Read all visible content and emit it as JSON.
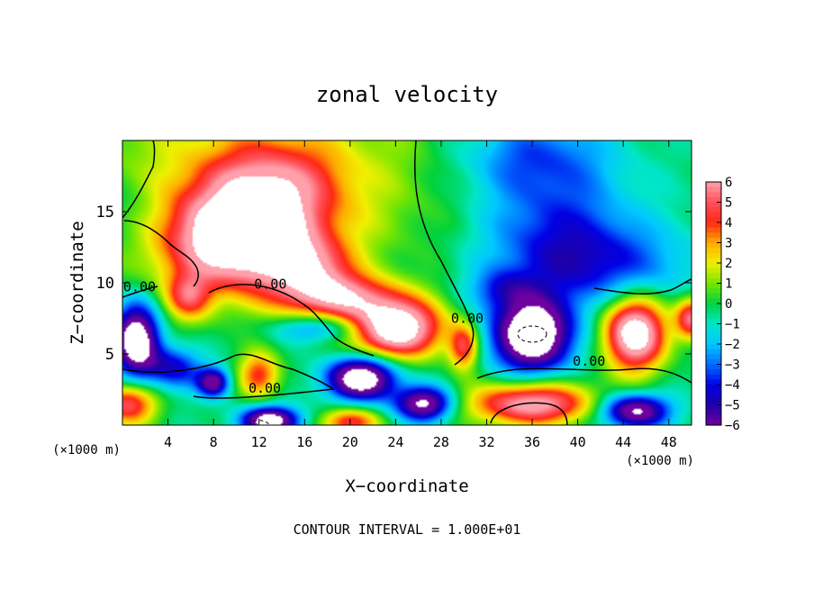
{
  "chart_data": {
    "type": "heatmap",
    "title": "zonal velocity",
    "xlabel": "X−coordinate",
    "ylabel": "Z−coordinate",
    "x_unit": "(×1000 m)",
    "y_unit": "(×1000 m)",
    "xlim": [
      0,
      50
    ],
    "ylim": [
      0,
      20
    ],
    "x_ticks": [
      4,
      8,
      12,
      16,
      20,
      24,
      28,
      32,
      36,
      40,
      44,
      48
    ],
    "y_ticks": [
      5,
      10,
      15
    ],
    "x_tick_labels": [
      "4",
      "8",
      "12",
      "16",
      "20",
      "24",
      "28",
      "32",
      "36",
      "40",
      "44",
      "48"
    ],
    "y_tick_labels": [
      "5",
      "10",
      "15"
    ],
    "colorbar": {
      "min": -6,
      "max": 6,
      "ticks": [
        6,
        5,
        4,
        3,
        2,
        1,
        0,
        -1,
        -2,
        -3,
        -4,
        -5,
        -6
      ],
      "tick_labels": [
        "6",
        "5",
        "4",
        "3",
        "2",
        "1",
        "0",
        "−1",
        "−2",
        "−3",
        "−4",
        "−5",
        "−6"
      ]
    },
    "contour_labels": [
      {
        "text": "0.00",
        "x": 1.5,
        "z": 9.7
      },
      {
        "text": "0.00",
        "x": 13.0,
        "z": 9.9
      },
      {
        "text": "0.00",
        "x": 12.5,
        "z": 2.6
      },
      {
        "text": "0.00",
        "x": 30.3,
        "z": 7.5
      },
      {
        "text": "0.00",
        "x": 41.0,
        "z": 4.5
      }
    ],
    "footer": "CONTOUR INTERVAL = 1.000E+01",
    "field_features": [
      {
        "x": 10.5,
        "z": 13.0,
        "amp": 9,
        "rx": 6.5,
        "rz": 3.4
      },
      {
        "x": 13.0,
        "z": 17.0,
        "amp": 4,
        "rx": 6,
        "rz": 3
      },
      {
        "x": 24.0,
        "z": 6.8,
        "amp": 9,
        "rx": 4.0,
        "rz": 2.0
      },
      {
        "x": 19.0,
        "z": 9.0,
        "amp": 5.5,
        "rx": 5,
        "rz": 1.6
      },
      {
        "x": 16.5,
        "z": 11.0,
        "amp": 4,
        "rx": 3.5,
        "rz": 2.0
      },
      {
        "x": 5.8,
        "z": 9.0,
        "amp": 4,
        "rx": 2.0,
        "rz": 1.6
      },
      {
        "x": 30.0,
        "z": 5.5,
        "amp": 5,
        "rx": 1.3,
        "rz": 1.6
      },
      {
        "x": 12.0,
        "z": 3.5,
        "amp": 4.5,
        "rx": 1.8,
        "rz": 1.6
      },
      {
        "x": 36.0,
        "z": 1.5,
        "amp": 7,
        "rx": 5.5,
        "rz": 1.5
      },
      {
        "x": 0.5,
        "z": 1.5,
        "amp": 5.5,
        "rx": 2.5,
        "rz": 1.5
      },
      {
        "x": 20.0,
        "z": 0.2,
        "amp": 5,
        "rx": 2.5,
        "rz": 1.0
      },
      {
        "x": 45.0,
        "z": 6.5,
        "amp": 9,
        "rx": 2.7,
        "rz": 2.6
      },
      {
        "x": 50.0,
        "z": 7.5,
        "amp": 6,
        "rx": 1.4,
        "rz": 1.5
      },
      {
        "x": 38.0,
        "z": 14.0,
        "amp": -3,
        "rx": 7,
        "rz": 4
      },
      {
        "x": 36.0,
        "z": 19.0,
        "amp": -3,
        "rx": 7,
        "rz": 3
      },
      {
        "x": 42.0,
        "z": 11.0,
        "amp": -3,
        "rx": 8,
        "rz": 3
      },
      {
        "x": 36.0,
        "z": 6.3,
        "amp": -9,
        "rx": 3.5,
        "rz": 2.5
      },
      {
        "x": 21.0,
        "z": 3.3,
        "amp": -8.5,
        "rx": 3.0,
        "rz": 1.5
      },
      {
        "x": 1.2,
        "z": 6.0,
        "amp": -8.5,
        "rx": 2.0,
        "rz": 2.5
      },
      {
        "x": 8.0,
        "z": 3.0,
        "amp": -6,
        "rx": 1.4,
        "rz": 1.0
      },
      {
        "x": 26.5,
        "z": 1.5,
        "amp": -7,
        "rx": 2.5,
        "rz": 1.2
      },
      {
        "x": 13.0,
        "z": 0.3,
        "amp": -8,
        "rx": 2.5,
        "rz": 1.0
      },
      {
        "x": 45.0,
        "z": 1.0,
        "amp": -7,
        "rx": 3.0,
        "rz": 1.2
      },
      {
        "x": 17.5,
        "z": 6.8,
        "amp": -3,
        "rx": 4.0,
        "rz": 1.0
      },
      {
        "x": 4.5,
        "z": 4.0,
        "amp": -4,
        "rx": 2.5,
        "rz": 1.5
      },
      {
        "x": 33.5,
        "z": 9.5,
        "amp": -2.5,
        "rx": 3.0,
        "rz": 1.5
      },
      {
        "x": 0.0,
        "z": 15.0,
        "amp": -1.3,
        "rx": 4.0,
        "rz": 3.0
      }
    ]
  }
}
